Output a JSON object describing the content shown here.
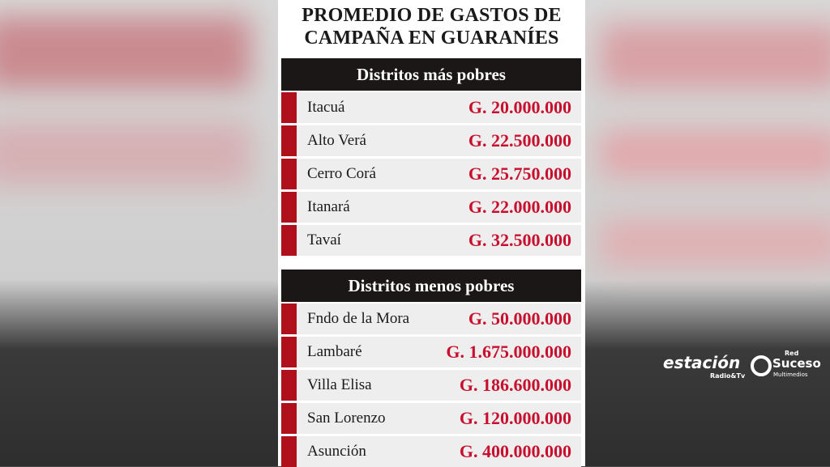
{
  "title": {
    "line1": "PROMEDIO DE GASTOS DE",
    "line2": "CAMPAÑA EN GUARANÍES"
  },
  "sections": [
    {
      "header": "Distritos más pobres",
      "rows": [
        [
          "Itacuá",
          "G. 20.000.000"
        ],
        [
          "Alto Verá",
          "G. 22.500.000"
        ],
        [
          "Cerro Corá",
          "G. 25.750.000"
        ],
        [
          "Itanará",
          "G. 22.000.000"
        ],
        [
          "Tavaí",
          "G. 32.500.000"
        ]
      ]
    },
    {
      "header": "Distritos menos pobres",
      "rows": [
        [
          "Fndo de la Mora",
          "G. 50.000.000"
        ],
        [
          "Lambaré",
          "G. 1.675.000.000"
        ],
        [
          "Villa Elisa",
          "G. 186.600.000"
        ],
        [
          "San Lorenzo",
          "G. 120.000.000"
        ],
        [
          "Asunción",
          "G. 400.000.000"
        ]
      ]
    }
  ],
  "watermark": {
    "brand": "estación",
    "brand_sub": "Radio&Tv",
    "network_top": "Red",
    "network": "Suceso",
    "network_sub": "Multimedios"
  }
}
